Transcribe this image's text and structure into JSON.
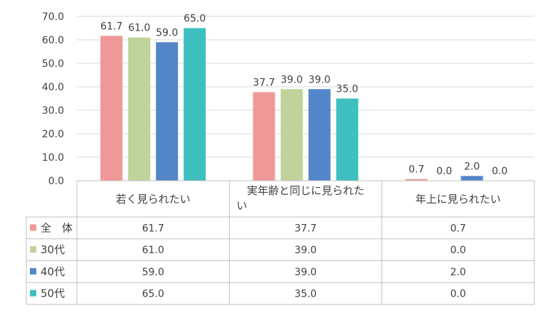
{
  "chart_data": {
    "type": "bar",
    "categories": [
      "若く見られたい",
      "実年齢と同じに見られたい",
      "年上に見られたい"
    ],
    "series": [
      {
        "name": "全　体",
        "values": [
          61.7,
          37.7,
          0.7
        ],
        "color": "#f09898"
      },
      {
        "name": "30代",
        "values": [
          61.0,
          39.0,
          0.0
        ],
        "color": "#bfd39a"
      },
      {
        "name": "40代",
        "values": [
          59.0,
          39.0,
          2.0
        ],
        "color": "#5286c9"
      },
      {
        "name": "50代",
        "values": [
          65.0,
          35.0,
          0.0
        ],
        "color": "#3fbfbf"
      }
    ],
    "ylim": [
      0,
      70
    ],
    "yticks": [
      "0.0",
      "10.0",
      "20.0",
      "30.0",
      "40.0",
      "50.0",
      "60.0",
      "70.0"
    ],
    "grid": true,
    "data_table": true
  }
}
